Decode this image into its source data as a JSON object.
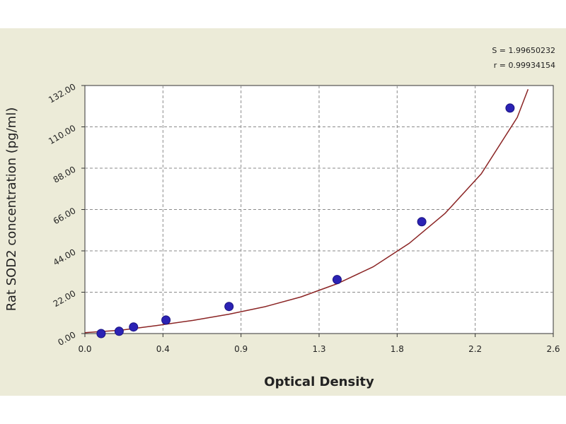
{
  "chart_data": {
    "type": "scatter",
    "xlabel": "Optical Density",
    "ylabel": "Rat SOD2 concentration (pg/ml)",
    "xlim": [
      0.0,
      2.6
    ],
    "ylim": [
      0.0,
      132.0
    ],
    "x_ticks": [
      "0.0",
      "0.4",
      "0.9",
      "1.3",
      "1.8",
      "2.2",
      "2.6"
    ],
    "y_ticks": [
      "0.00",
      "22.00",
      "44.00",
      "66.00",
      "88.00",
      "110.00",
      "132.00"
    ],
    "grid": true,
    "stats": [
      "S = 1.99650232",
      "r = 0.99934154"
    ],
    "points": [
      {
        "x": 0.09,
        "y": 0.0
      },
      {
        "x": 0.19,
        "y": 1.2
      },
      {
        "x": 0.27,
        "y": 3.5
      },
      {
        "x": 0.45,
        "y": 7.2
      },
      {
        "x": 0.8,
        "y": 14.4
      },
      {
        "x": 1.4,
        "y": 28.7
      },
      {
        "x": 1.87,
        "y": 59.5
      },
      {
        "x": 2.36,
        "y": 120.0
      }
    ],
    "fit_curve": [
      {
        "x": 0.0,
        "y": 0.5
      },
      {
        "x": 0.2,
        "y": 1.8
      },
      {
        "x": 0.4,
        "y": 4.3
      },
      {
        "x": 0.6,
        "y": 7.0
      },
      {
        "x": 0.8,
        "y": 10.3
      },
      {
        "x": 1.0,
        "y": 14.3
      },
      {
        "x": 1.2,
        "y": 19.5
      },
      {
        "x": 1.4,
        "y": 26.5
      },
      {
        "x": 1.6,
        "y": 35.5
      },
      {
        "x": 1.8,
        "y": 48.0
      },
      {
        "x": 2.0,
        "y": 64.0
      },
      {
        "x": 2.2,
        "y": 85.0
      },
      {
        "x": 2.4,
        "y": 115.0
      },
      {
        "x": 2.46,
        "y": 130.0
      }
    ],
    "colors": {
      "panel": "#ecebd8",
      "marker": "#2b22b4",
      "marker_edge": "#1a1380",
      "fit_line": "#8b2525",
      "grid": "#8a8a8a"
    }
  }
}
